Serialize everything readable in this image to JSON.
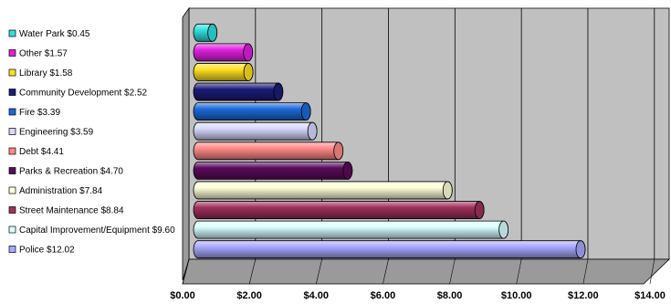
{
  "chart_data": {
    "type": "bar",
    "orientation": "horizontal",
    "style": "3d-cylinder",
    "title": "",
    "xlabel": "",
    "ylabel": "",
    "xlim": [
      0,
      14
    ],
    "x_ticks": [
      "$0.00",
      "$2.00",
      "$4.00",
      "$6.00",
      "$8.00",
      "$10.00",
      "$12.00",
      "$14.00"
    ],
    "grid": true,
    "legend_position": "left",
    "categories": [
      "Water Park",
      "Other",
      "Library",
      "Community Development",
      "Fire",
      "Engineering",
      "Debt",
      "Parks & Recreation",
      "Administration",
      "Street Maintenance",
      "Capital Improvement/Equipment",
      "Police"
    ],
    "values": [
      0.45,
      1.57,
      1.58,
      2.52,
      3.39,
      3.59,
      4.41,
      4.7,
      7.84,
      8.84,
      9.6,
      12.02
    ],
    "legend_labels": [
      "Water Park $0.45",
      "Other $1.57",
      "Library $1.58",
      "Community Development $2.52",
      "Fire $3.39",
      "Engineering $3.59",
      "Debt $4.41",
      "Parks & Recreation $4.70",
      "Administration $7.84",
      "Street Maintenance $8.84",
      "Capital Improvement/Equipment $9.60",
      "Police $12.02"
    ],
    "colors": [
      "#2fe0e0",
      "#e020e0",
      "#ffe020",
      "#1c1c7a",
      "#1c6ad8",
      "#d8d8ff",
      "#ff8a88",
      "#5c0a5c",
      "#ffffd8",
      "#a0305c",
      "#d8ffff",
      "#a8a8ff"
    ]
  }
}
